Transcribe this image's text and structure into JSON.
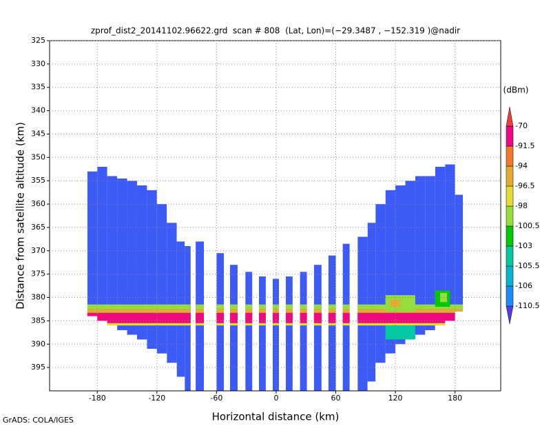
{
  "chart_data": {
    "type": "profile",
    "title": "zprof_dist2_20141102.96622.grd  scan # 808  (Lat, Lon)=(−29.3487 , −152.319 )@nadir",
    "xlabel": "Horizontal distance (km)",
    "ylabel": "Distance from satellite altitude (km)",
    "footer": "GrADS: COLA/IGES",
    "units": "(dBm)",
    "xlim": [
      -228,
      226
    ],
    "ylim": [
      400,
      325
    ],
    "xticks": [
      -180,
      -120,
      -60,
      0,
      60,
      120,
      180
    ],
    "yticks": [
      325,
      330,
      335,
      340,
      345,
      350,
      355,
      360,
      365,
      370,
      375,
      380,
      385,
      390,
      395
    ],
    "grid": true,
    "field_color": "#3c5af5",
    "levels": [
      -110.5,
      -106,
      -105.5,
      -103,
      -100.5,
      -98,
      -96.5,
      -94,
      -91.5,
      -70
    ],
    "colors": [
      "#5a3ce6",
      "#1e8cff",
      "#00b4d2",
      "#00c8a0",
      "#00c800",
      "#96dc3c",
      "#e6dc32",
      "#e6aa32",
      "#f07828",
      "#f00a82",
      "#f03c3c"
    ],
    "columns": [
      {
        "x0": -190,
        "x1": -180,
        "top": 353,
        "bottom": 384
      },
      {
        "x0": -180,
        "x1": -170,
        "top": 352,
        "bottom": 385
      },
      {
        "x0": -170,
        "x1": -160,
        "top": 354,
        "bottom": 386
      },
      {
        "x0": -160,
        "x1": -150,
        "top": 354.5,
        "bottom": 387
      },
      {
        "x0": -150,
        "x1": -140,
        "top": 355,
        "bottom": 388
      },
      {
        "x0": -140,
        "x1": -130,
        "top": 356,
        "bottom": 389
      },
      {
        "x0": -130,
        "x1": -120,
        "top": 357,
        "bottom": 391
      },
      {
        "x0": -120,
        "x1": -110,
        "top": 360,
        "bottom": 392
      },
      {
        "x0": -110,
        "x1": -100,
        "top": 364,
        "bottom": 394
      },
      {
        "x0": -100,
        "x1": -92,
        "top": 368,
        "bottom": 397
      },
      {
        "x0": -92,
        "x1": -86,
        "top": 369,
        "bottom": 400
      },
      {
        "x0": -81,
        "x1": -72.7,
        "top": 368,
        "bottom": 400
      },
      {
        "x0": -60,
        "x1": -52.6,
        "top": 370.5,
        "bottom": 400
      },
      {
        "x0": -46.4,
        "x1": -38.8,
        "top": 373,
        "bottom": 400
      },
      {
        "x0": -31,
        "x1": -24,
        "top": 374.5,
        "bottom": 400
      },
      {
        "x0": -17.3,
        "x1": -10.4,
        "top": 375.5,
        "bottom": 400
      },
      {
        "x0": -3.5,
        "x1": 2.8,
        "top": 376,
        "bottom": 400
      },
      {
        "x0": 9.7,
        "x1": 16.6,
        "top": 375.5,
        "bottom": 400
      },
      {
        "x0": 24,
        "x1": 31,
        "top": 374.5,
        "bottom": 400
      },
      {
        "x0": 38,
        "x1": 45.7,
        "top": 373,
        "bottom": 400
      },
      {
        "x0": 52.6,
        "x1": 60,
        "top": 371,
        "bottom": 400
      },
      {
        "x0": 67,
        "x1": 74,
        "top": 368.5,
        "bottom": 400
      },
      {
        "x0": 82,
        "x1": 92,
        "top": 367,
        "bottom": 400
      },
      {
        "x0": 92,
        "x1": 100,
        "top": 364,
        "bottom": 398
      },
      {
        "x0": 100,
        "x1": 110,
        "top": 360,
        "bottom": 394
      },
      {
        "x0": 110,
        "x1": 120,
        "top": 357,
        "bottom": 392
      },
      {
        "x0": 120,
        "x1": 130,
        "top": 356,
        "bottom": 390
      },
      {
        "x0": 130,
        "x1": 140,
        "top": 355,
        "bottom": 389
      },
      {
        "x0": 140,
        "x1": 150,
        "top": 354,
        "bottom": 388
      },
      {
        "x0": 150,
        "x1": 160,
        "top": 354,
        "bottom": 387
      },
      {
        "x0": 160,
        "x1": 170,
        "top": 352,
        "bottom": 386
      },
      {
        "x0": 170,
        "x1": 180,
        "top": 351.5,
        "bottom": 385
      },
      {
        "x0": 180,
        "x1": 188,
        "top": 358,
        "bottom": 383
      }
    ],
    "echoes": [
      {
        "x0": -192,
        "x1": 192,
        "top": 381.5,
        "bottom": 382.5,
        "value": -100.5
      },
      {
        "x0": -192,
        "x1": 192,
        "top": 382.5,
        "bottom": 383.3,
        "value": -96.5
      },
      {
        "x0": -192,
        "x1": 192,
        "top": 383.3,
        "bottom": 385.5,
        "value": -91.5
      },
      {
        "x0": -192,
        "x1": 192,
        "top": 385.5,
        "bottom": 386,
        "value": -98
      },
      {
        "x0": 110,
        "x1": 140,
        "top": 379.5,
        "bottom": 383,
        "value": -100.5
      },
      {
        "x0": 115,
        "x1": 125,
        "top": 380.5,
        "bottom": 382,
        "value": -96.5
      },
      {
        "x0": 160,
        "x1": 175,
        "top": 378.5,
        "bottom": 382,
        "value": -103
      },
      {
        "x0": 165,
        "x1": 172,
        "top": 379,
        "bottom": 381,
        "value": -100.5
      },
      {
        "x0": 110,
        "x1": 140,
        "top": 386,
        "bottom": 389,
        "value": -105.5
      }
    ]
  }
}
